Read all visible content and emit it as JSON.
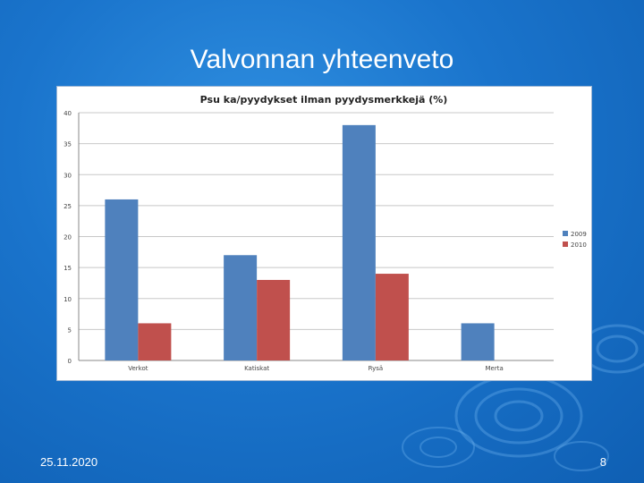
{
  "slide": {
    "title": "Valvonnan yhteenveto",
    "date": "25.11.2020",
    "page_number": "8",
    "background_color": "#1a74cc"
  },
  "chart_data": {
    "type": "bar",
    "title": "Psu ka/pyydykset ilman pyydysmerkkejä (%)",
    "xlabel": "",
    "ylabel": "",
    "categories": [
      "Verkot",
      "Katiskat",
      "Rysä",
      "Merta"
    ],
    "series": [
      {
        "name": "2009",
        "color": "#4f81bd",
        "values": [
          26,
          17,
          38,
          6
        ]
      },
      {
        "name": "2010",
        "color": "#c0504d",
        "values": [
          6,
          13,
          14,
          0
        ]
      }
    ],
    "ylim": [
      0,
      40
    ],
    "yticks": [
      "0",
      "5",
      "10",
      "15",
      "20",
      "25",
      "30",
      "35",
      "40"
    ],
    "grid": true,
    "legend_position": "right"
  }
}
